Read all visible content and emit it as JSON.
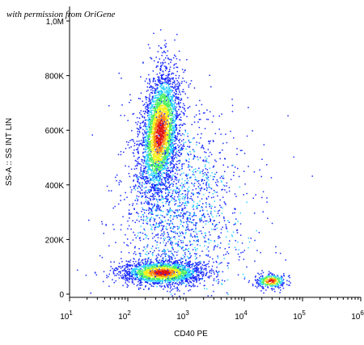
{
  "credit": "with permission from OriGene",
  "chart_data": {
    "type": "scatter",
    "title": "",
    "xlabel": "CD40 PE",
    "ylabel": "SS-A :: SS INT LIN",
    "x_scale": "log",
    "y_scale": "linear",
    "xlim": [
      10,
      1000000
    ],
    "ylim": [
      0,
      1000000
    ],
    "x_ticks": [
      {
        "value": 10,
        "base": "10",
        "exp": "1"
      },
      {
        "value": 100,
        "base": "10",
        "exp": "2"
      },
      {
        "value": 1000,
        "base": "10",
        "exp": "3"
      },
      {
        "value": 10000,
        "base": "10",
        "exp": "4"
      },
      {
        "value": 100000,
        "base": "10",
        "exp": "5"
      },
      {
        "value": 1000000,
        "base": "10",
        "exp": "6"
      }
    ],
    "y_ticks": [
      {
        "value": 0,
        "label": "0"
      },
      {
        "value": 200000,
        "label": "200K"
      },
      {
        "value": 400000,
        "label": "400K"
      },
      {
        "value": 600000,
        "label": "600K"
      },
      {
        "value": 800000,
        "label": "800K"
      },
      {
        "value": 1000000,
        "label": "1,0M"
      }
    ],
    "density_colormap": [
      "#1a2aff",
      "#2bd2ff",
      "#4ef060",
      "#f4f020",
      "#ff8a1a",
      "#e01414"
    ],
    "populations": [
      {
        "center_x": 350,
        "center_y": 590000,
        "count": 3200,
        "spread_log_x": 0.16,
        "spread_y": 115000,
        "tilt": 0.45
      },
      {
        "center_x": 380,
        "center_y": 80000,
        "count": 1900,
        "spread_log_x": 0.34,
        "spread_y": 22000,
        "tilt": 0
      },
      {
        "center_x": 28000,
        "center_y": 50000,
        "count": 320,
        "spread_log_x": 0.13,
        "spread_y": 14000,
        "tilt": 0
      },
      {
        "center_x": 650,
        "center_y": 330000,
        "count": 1300,
        "spread_log_x": 0.45,
        "spread_y": 170000,
        "tilt": 0
      },
      {
        "center_x": 1200,
        "center_y": 240000,
        "count": 500,
        "spread_log_x": 0.7,
        "spread_y": 190000,
        "tilt": 0
      }
    ]
  }
}
